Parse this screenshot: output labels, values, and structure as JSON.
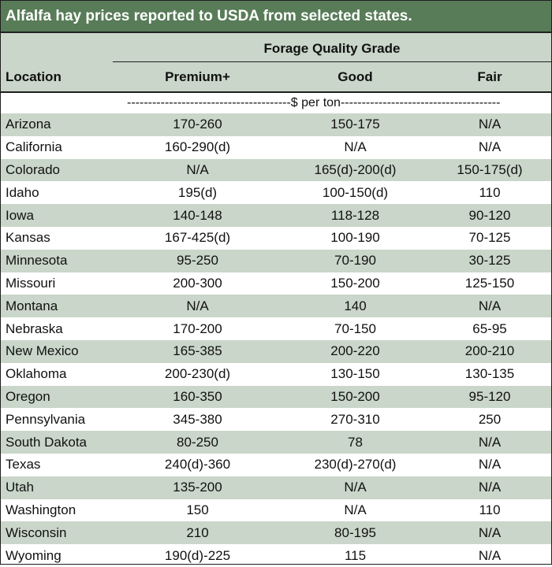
{
  "title": "Alfalfa hay prices reported to USDA from selected states.",
  "group_header": "Forage Quality Grade",
  "columns": {
    "location": "Location",
    "premium": "Premium+",
    "good": "Good",
    "fair": "Fair"
  },
  "unit_line": "---------------------------------------$ per ton--------------------------------------",
  "colors": {
    "title_bg": "#587c58",
    "shade": "#c9d6c9"
  },
  "rows": [
    {
      "location": "Arizona",
      "premium": "170-260",
      "good": "150-175",
      "fair": "N/A"
    },
    {
      "location": "California",
      "premium": "160-290(d)",
      "good": "N/A",
      "fair": "N/A"
    },
    {
      "location": "Colorado",
      "premium": "N/A",
      "good": "165(d)-200(d)",
      "fair": "150-175(d)"
    },
    {
      "location": "Idaho",
      "premium": "195(d)",
      "good": "100-150(d)",
      "fair": "110"
    },
    {
      "location": "Iowa",
      "premium": "140-148",
      "good": "118-128",
      "fair": "90-120"
    },
    {
      "location": "Kansas",
      "premium": "167-425(d)",
      "good": "100-190",
      "fair": "70-125"
    },
    {
      "location": "Minnesota",
      "premium": "95-250",
      "good": "70-190",
      "fair": "30-125"
    },
    {
      "location": "Missouri",
      "premium": "200-300",
      "good": "150-200",
      "fair": "125-150"
    },
    {
      "location": "Montana",
      "premium": "N/A",
      "good": "140",
      "fair": "N/A"
    },
    {
      "location": "Nebraska",
      "premium": "170-200",
      "good": "70-150",
      "fair": "65-95"
    },
    {
      "location": "New Mexico",
      "premium": "165-385",
      "good": "200-220",
      "fair": "200-210"
    },
    {
      "location": "Oklahoma",
      "premium": "200-230(d)",
      "good": "130-150",
      "fair": "130-135"
    },
    {
      "location": "Oregon",
      "premium": "160-350",
      "good": "150-200",
      "fair": "95-120"
    },
    {
      "location": "Pennsylvania",
      "premium": "345-380",
      "good": "270-310",
      "fair": "250"
    },
    {
      "location": "South Dakota",
      "premium": "80-250",
      "good": "78",
      "fair": "N/A"
    },
    {
      "location": "Texas",
      "premium": "240(d)-360",
      "good": "230(d)-270(d)",
      "fair": "N/A"
    },
    {
      "location": "Utah",
      "premium": "135-200",
      "good": "N/A",
      "fair": "N/A"
    },
    {
      "location": "Washington",
      "premium": "150",
      "good": "N/A",
      "fair": "110"
    },
    {
      "location": "Wisconsin",
      "premium": "210",
      "good": "80-195",
      "fair": "N/A"
    },
    {
      "location": "Wyoming",
      "premium": "190(d)-225",
      "good": "115",
      "fair": "N/A"
    }
  ]
}
